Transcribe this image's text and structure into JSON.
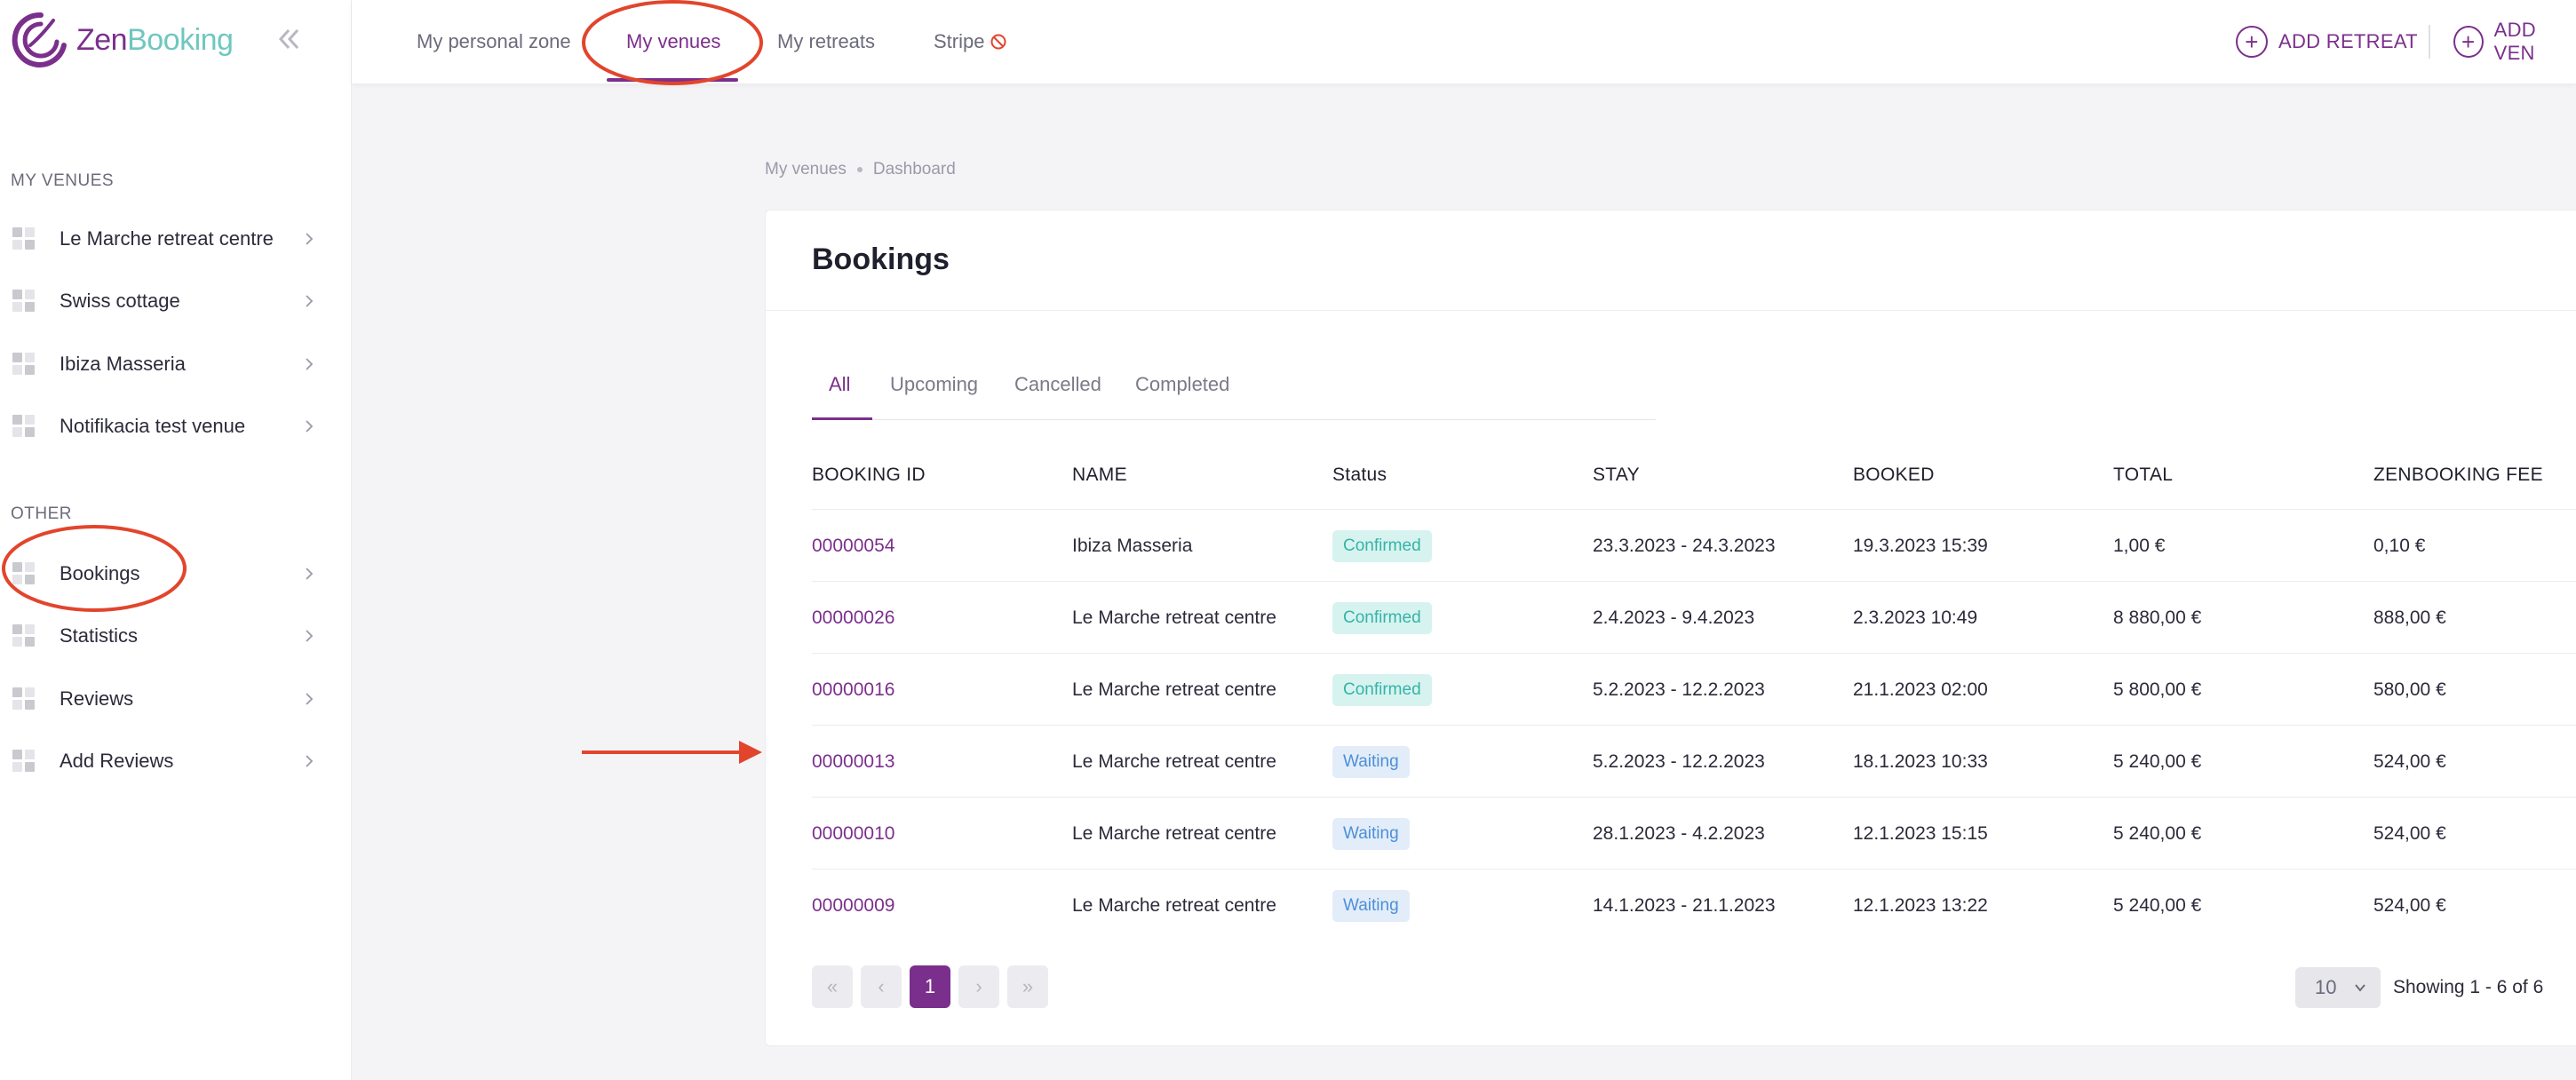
{
  "app": {
    "logo_zen": "Zen",
    "logo_booking": "Booking"
  },
  "colors": {
    "brand": "#7b2f8c",
    "brand_teal": "#6fc7c0",
    "confirmed_bg": "#d7f3f0",
    "confirmed_fg": "#36b3a7",
    "waiting_bg": "#e2edf9",
    "waiting_fg": "#4d8fd8",
    "annotation_red": "#e2452c"
  },
  "sidebar": {
    "collapse_icon": "double-chevron-left-icon",
    "sections": [
      {
        "label": "MY VENUES",
        "items": [
          {
            "label": "Le Marche retreat centre"
          },
          {
            "label": "Swiss cottage"
          },
          {
            "label": "Ibiza Masseria"
          },
          {
            "label": "Notifikacia test venue"
          }
        ]
      },
      {
        "label": "OTHER",
        "items": [
          {
            "label": "Bookings"
          },
          {
            "label": "Statistics"
          },
          {
            "label": "Reviews"
          },
          {
            "label": "Add Reviews"
          }
        ]
      }
    ]
  },
  "topbar": {
    "tabs": [
      {
        "label": "My personal zone"
      },
      {
        "label": "My venues",
        "active": true
      },
      {
        "label": "My retreats"
      },
      {
        "label": "Stripe",
        "icon": "prohibited-icon"
      }
    ],
    "actions": [
      {
        "label": "ADD RETREAT",
        "icon": "plus-circle-icon"
      },
      {
        "label": "ADD VEN",
        "icon": "plus-circle-icon"
      }
    ]
  },
  "breadcrumb": [
    "My venues",
    "Dashboard"
  ],
  "bookings": {
    "title": "Bookings",
    "filter_tabs": [
      {
        "label": "All",
        "active": true
      },
      {
        "label": "Upcoming"
      },
      {
        "label": "Cancelled"
      },
      {
        "label": "Completed"
      }
    ],
    "columns": [
      "BOOKING ID",
      "NAME",
      "Status",
      "STAY",
      "BOOKED",
      "TOTAL",
      "ZENBOOKING FEE"
    ],
    "rows": [
      {
        "id": "00000054",
        "name": "Ibiza Masseria",
        "status": "Confirmed",
        "stay": "23.3.2023 - 24.3.2023",
        "booked": "19.3.2023 15:39",
        "total": "1,00 €",
        "fee": "0,10 €"
      },
      {
        "id": "00000026",
        "name": "Le Marche retreat centre",
        "status": "Confirmed",
        "stay": "2.4.2023 - 9.4.2023",
        "booked": "2.3.2023 10:49",
        "total": "8 880,00 €",
        "fee": "888,00 €"
      },
      {
        "id": "00000016",
        "name": "Le Marche retreat centre",
        "status": "Confirmed",
        "stay": "5.2.2023 - 12.2.2023",
        "booked": "21.1.2023 02:00",
        "total": "5 800,00 €",
        "fee": "580,00 €"
      },
      {
        "id": "00000013",
        "name": "Le Marche retreat centre",
        "status": "Waiting",
        "stay": "5.2.2023 - 12.2.2023",
        "booked": "18.1.2023 10:33",
        "total": "5 240,00 €",
        "fee": "524,00 €"
      },
      {
        "id": "00000010",
        "name": "Le Marche retreat centre",
        "status": "Waiting",
        "stay": "28.1.2023 - 4.2.2023",
        "booked": "12.1.2023 15:15",
        "total": "5 240,00 €",
        "fee": "524,00 €"
      },
      {
        "id": "00000009",
        "name": "Le Marche retreat centre",
        "status": "Waiting",
        "stay": "14.1.2023 - 21.1.2023",
        "booked": "12.1.2023 13:22",
        "total": "5 240,00 €",
        "fee": "524,00 €"
      }
    ],
    "pagination": {
      "first": "«",
      "prev": "‹",
      "current": "1",
      "next": "›",
      "last": "»",
      "page_size": "10",
      "showing": "Showing 1 - 6 of 6"
    }
  }
}
